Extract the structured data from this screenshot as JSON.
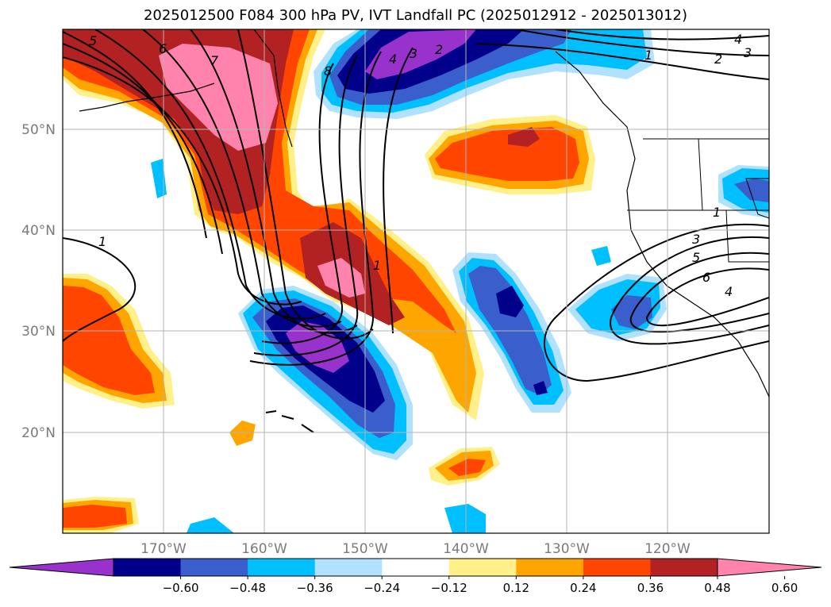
{
  "title": "2025012500 F084 300 hPa PV, IVT Landfall PC (2025012912 - 2025013012)",
  "map": {
    "lon_labels": [
      "170°W",
      "160°W",
      "150°W",
      "140°W",
      "130°W",
      "120°W"
    ],
    "lat_labels": [
      "50°N",
      "40°N",
      "30°N",
      "20°N"
    ]
  },
  "colorbar": {
    "colors": [
      "#9932cc",
      "#00008b",
      "#3a5fcd",
      "#00bfff",
      "#b0e2ff",
      "#ffffff",
      "#fff08a",
      "#ffa500",
      "#ff4500",
      "#b22222",
      "#ff83ac"
    ],
    "ticks": [
      "−0.60",
      "−0.48",
      "−0.36",
      "−0.24",
      "−0.12",
      "0.12",
      "0.24",
      "0.36",
      "0.48",
      "0.60"
    ]
  },
  "contour_labels": {
    "trough": [
      "5",
      "6",
      "7",
      "8",
      "1",
      "1"
    ],
    "ridge": [
      "4",
      "3",
      "2",
      "1",
      "2",
      "3",
      "4"
    ],
    "east": [
      "1",
      "3",
      "5",
      "6",
      "4"
    ]
  }
}
